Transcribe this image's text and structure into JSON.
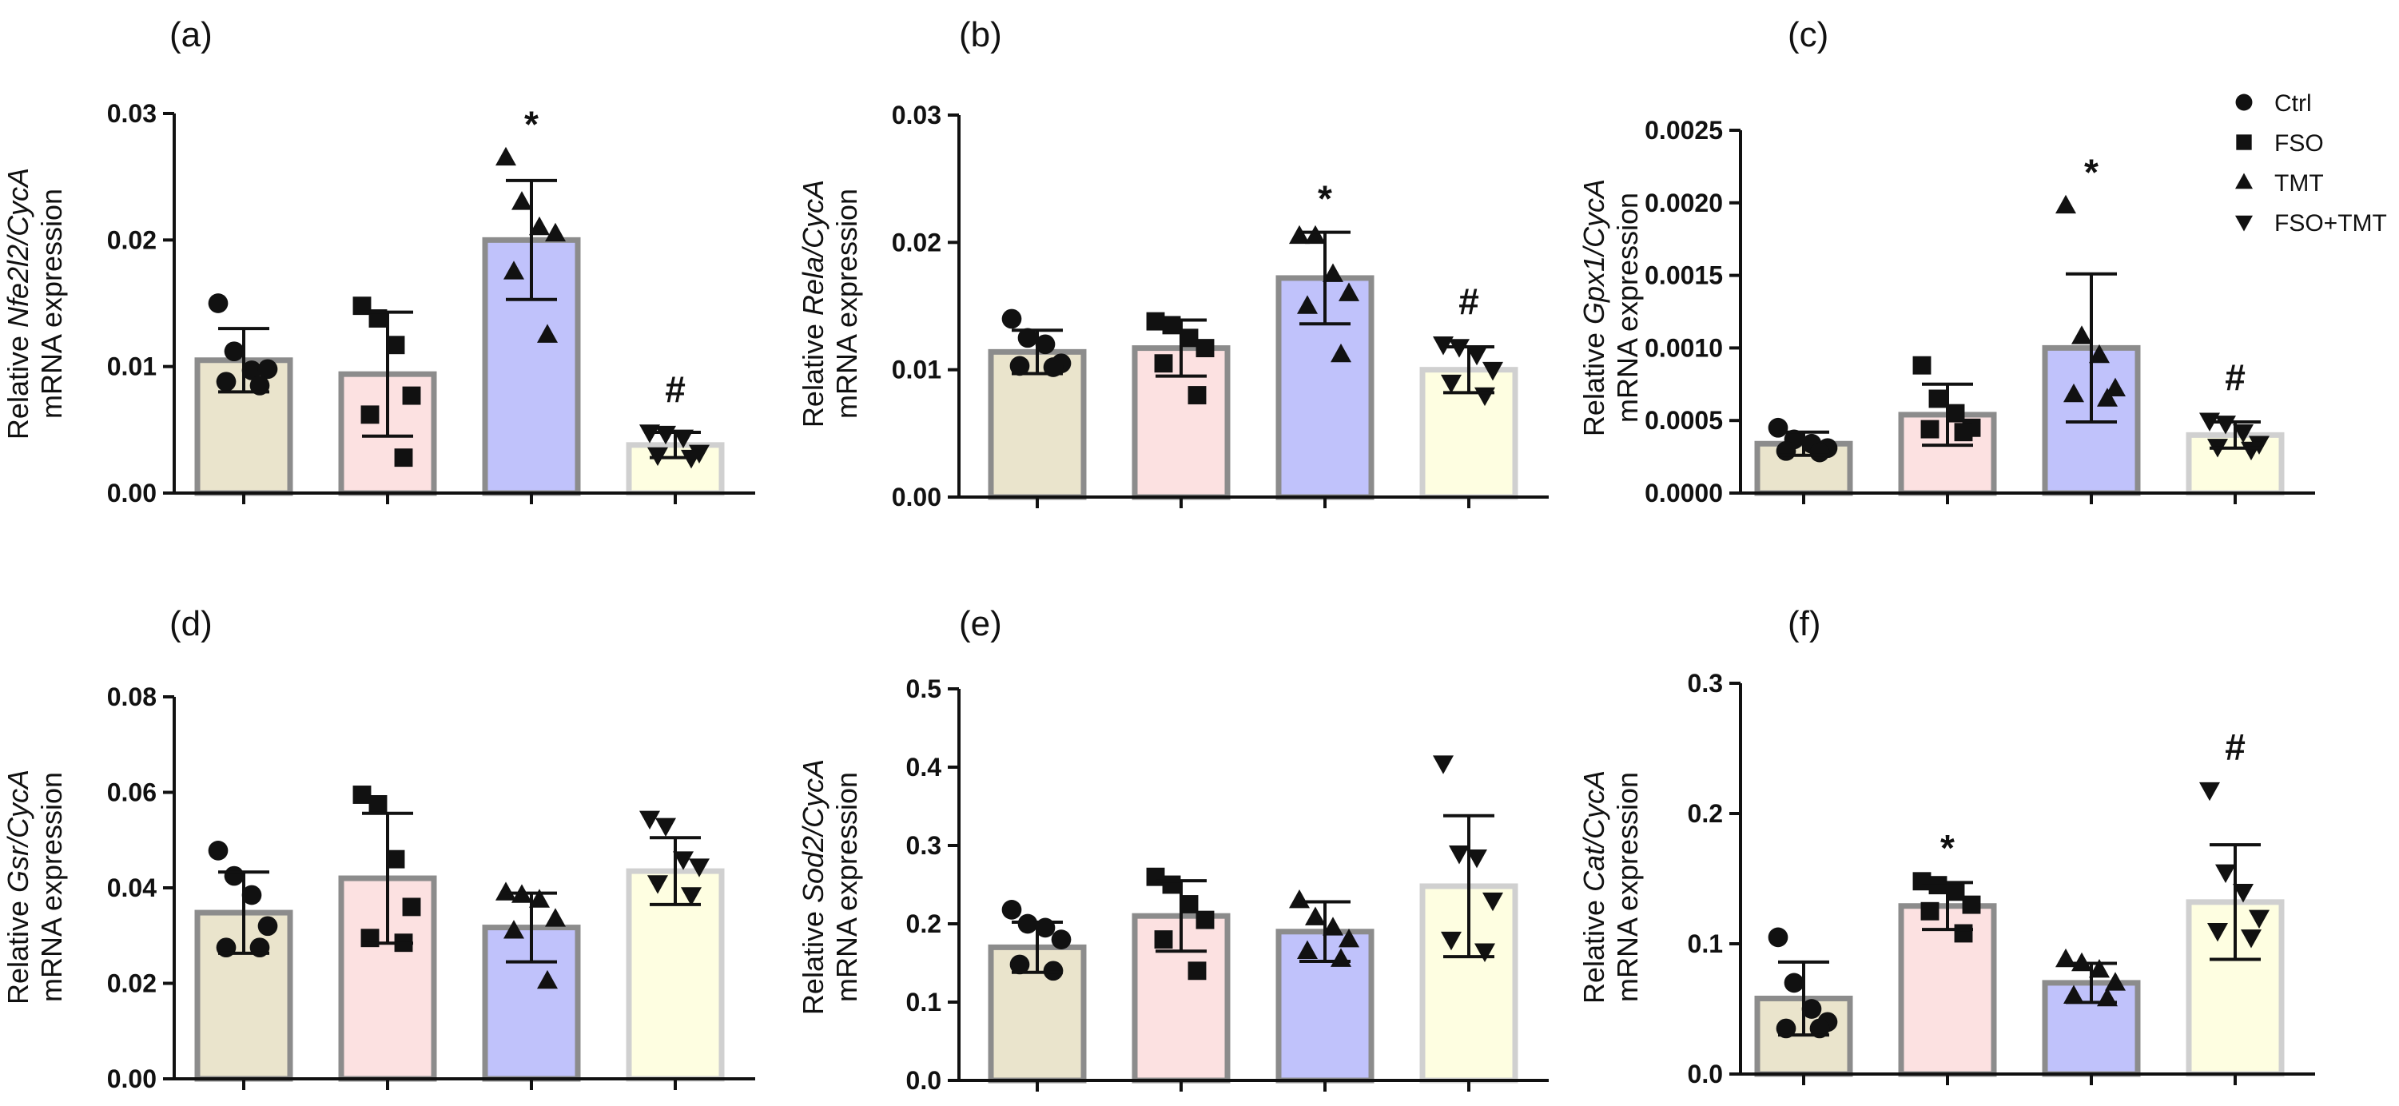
{
  "legend": {
    "items": [
      {
        "label": "Ctrl",
        "marker": "circle"
      },
      {
        "label": "FSO",
        "marker": "square"
      },
      {
        "label": "TMT",
        "marker": "triangle-up"
      },
      {
        "label": "FSO+TMT",
        "marker": "triangle-down"
      }
    ]
  },
  "colors": {
    "Ctrl_fill": "#EAE4CC",
    "FSO_fill": "#FCE1E1",
    "TMT_fill": "#C0C2FB",
    "FSOTMT_fill": "#FEFEE1",
    "bar_stroke": "#8C8C8C",
    "bar_stroke_light": "#D0D0D0",
    "ink": "#111111"
  },
  "chart_data": [
    {
      "panel": "(a)",
      "type": "bar",
      "ylabel_gene": "Nfe2l2/CycA",
      "ylabel_prefix": "Relative ",
      "ylabel_line2": "mRNA expression",
      "ylim": [
        0,
        0.03
      ],
      "yticks": [
        "0.00",
        "0.01",
        "0.02",
        "0.03"
      ],
      "categories": [
        "Ctrl",
        "FSO",
        "TMT",
        "FSO+TMT"
      ],
      "values": [
        0.0105,
        0.0094,
        0.02,
        0.0038
      ],
      "sd": [
        0.0025,
        0.0049,
        0.0047,
        0.001
      ],
      "points": [
        [
          0.015,
          0.0112,
          0.0097,
          0.0098,
          0.0088,
          0.0085
        ],
        [
          0.0148,
          0.0138,
          0.0117,
          0.0077,
          0.0062,
          0.0028
        ],
        [
          0.0265,
          0.023,
          0.021,
          0.0205,
          0.0175,
          0.0125
        ],
        [
          0.0048,
          0.0047,
          0.0044,
          0.0032,
          0.003,
          0.0028
        ]
      ],
      "significance": [
        "",
        "",
        "*",
        "#"
      ]
    },
    {
      "panel": "(b)",
      "type": "bar",
      "ylabel_gene": "Rela/CycA",
      "ylabel_prefix": "Relative ",
      "ylabel_line2": "mRNA expression",
      "ylim": [
        0,
        0.03
      ],
      "yticks": [
        "0.00",
        "0.01",
        "0.02",
        "0.03"
      ],
      "categories": [
        "Ctrl",
        "FSO",
        "TMT",
        "FSO+TMT"
      ],
      "values": [
        0.0114,
        0.0117,
        0.0172,
        0.01
      ],
      "sd": [
        0.0017,
        0.0022,
        0.0036,
        0.0018
      ],
      "points": [
        [
          0.014,
          0.0125,
          0.012,
          0.0105,
          0.0103,
          0.0102
        ],
        [
          0.0138,
          0.0135,
          0.0125,
          0.0117,
          0.0105,
          0.008
        ],
        [
          0.0205,
          0.0205,
          0.0175,
          0.016,
          0.015,
          0.0112
        ],
        [
          0.012,
          0.0118,
          0.0112,
          0.01,
          0.009,
          0.008
        ]
      ],
      "significance": [
        "",
        "",
        "*",
        "#"
      ]
    },
    {
      "panel": "(c)",
      "type": "bar",
      "ylabel_gene": "Gpx1/CycA",
      "ylabel_prefix": "Relative ",
      "ylabel_line2": "mRNA expression",
      "ylim": [
        0,
        0.0025
      ],
      "yticks": [
        "0.0000",
        "0.0005",
        "0.0010",
        "0.0015",
        "0.0020",
        "0.0025"
      ],
      "categories": [
        "Ctrl",
        "FSO",
        "TMT",
        "FSO+TMT"
      ],
      "values": [
        0.00034,
        0.00054,
        0.001,
        0.0004
      ],
      "sd": [
        8e-05,
        0.00021,
        0.00051,
        9e-05
      ],
      "points": [
        [
          0.00045,
          0.00037,
          0.00034,
          0.00031,
          0.00029,
          0.00028
        ],
        [
          0.00088,
          0.00065,
          0.00055,
          0.00045,
          0.00044,
          0.00042
        ],
        [
          0.00198,
          0.00108,
          0.00095,
          0.00072,
          0.00068,
          0.00065
        ],
        [
          0.0005,
          0.00048,
          0.00042,
          0.00034,
          0.00032,
          0.0003
        ]
      ],
      "significance": [
        "",
        "",
        "*",
        "#"
      ]
    },
    {
      "panel": "(d)",
      "type": "bar",
      "ylabel_gene": "Gsr/CycA",
      "ylabel_prefix": "Relative ",
      "ylabel_line2": "mRNA expression",
      "ylim": [
        0,
        0.08
      ],
      "yticks": [
        "0.00",
        "0.02",
        "0.04",
        "0.06",
        "0.08"
      ],
      "categories": [
        "Ctrl",
        "FSO",
        "TMT",
        "FSO+TMT"
      ],
      "values": [
        0.0348,
        0.042,
        0.0317,
        0.0435
      ],
      "sd": [
        0.0085,
        0.0136,
        0.0072,
        0.007
      ],
      "points": [
        [
          0.0478,
          0.0425,
          0.0385,
          0.032,
          0.0275,
          0.0275
        ],
        [
          0.0595,
          0.0575,
          0.046,
          0.036,
          0.0295,
          0.0285
        ],
        [
          0.039,
          0.0385,
          0.0375,
          0.0335,
          0.031,
          0.0205
        ],
        [
          0.0545,
          0.053,
          0.046,
          0.0445,
          0.041,
          0.0385
        ]
      ],
      "significance": [
        "",
        "",
        "",
        ""
      ]
    },
    {
      "panel": "(e)",
      "type": "bar",
      "ylabel_gene": "Sod2/CycA",
      "ylabel_prefix": "Relative ",
      "ylabel_line2": "mRNA expression",
      "ylim": [
        0,
        0.5
      ],
      "yticks": [
        "0.0",
        "0.1",
        "0.2",
        "0.3",
        "0.4",
        "0.5"
      ],
      "categories": [
        "Ctrl",
        "FSO",
        "TMT",
        "FSO+TMT"
      ],
      "values": [
        0.17,
        0.21,
        0.19,
        0.248
      ],
      "sd": [
        0.032,
        0.045,
        0.038,
        0.09
      ],
      "points": [
        [
          0.218,
          0.2,
          0.195,
          0.18,
          0.148,
          0.14
        ],
        [
          0.26,
          0.25,
          0.225,
          0.205,
          0.18,
          0.14
        ],
        [
          0.23,
          0.208,
          0.195,
          0.18,
          0.165,
          0.155
        ],
        [
          0.405,
          0.29,
          0.285,
          0.23,
          0.18,
          0.165
        ]
      ],
      "significance": [
        "",
        "",
        "",
        ""
      ]
    },
    {
      "panel": "(f)",
      "type": "bar",
      "ylabel_gene": "Cat/CycA",
      "ylabel_prefix": "Relative ",
      "ylabel_line2": "mRNA expression",
      "ylim": [
        0,
        0.3
      ],
      "yticks": [
        "0.0",
        "0.1",
        "0.2",
        "0.3"
      ],
      "categories": [
        "Ctrl",
        "FSO",
        "TMT",
        "FSO+TMT"
      ],
      "values": [
        0.058,
        0.129,
        0.07,
        0.132
      ],
      "sd": [
        0.028,
        0.018,
        0.015,
        0.044
      ],
      "points": [
        [
          0.105,
          0.07,
          0.05,
          0.04,
          0.035,
          0.035
        ],
        [
          0.148,
          0.145,
          0.14,
          0.13,
          0.125,
          0.108
        ],
        [
          0.088,
          0.085,
          0.08,
          0.07,
          0.06,
          0.058
        ],
        [
          0.218,
          0.155,
          0.14,
          0.12,
          0.11,
          0.105
        ]
      ],
      "significance": [
        "",
        "*",
        "",
        "#"
      ]
    }
  ]
}
